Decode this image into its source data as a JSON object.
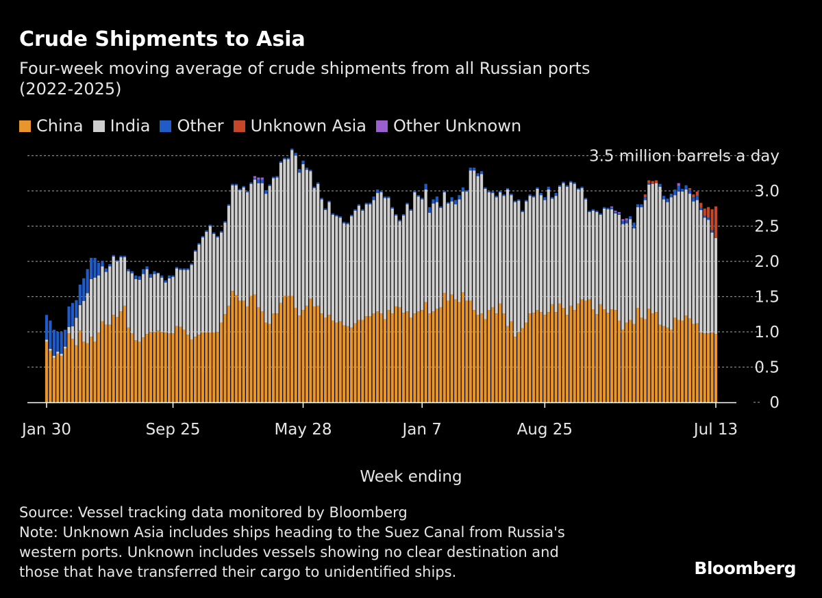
{
  "title": "Crude Shipments to Asia",
  "subtitle_lines": [
    "Four-week moving average of crude shipments from all Russian ports",
    "(2022-2025)"
  ],
  "source": "Source: Vessel tracking data monitored by Bloomberg",
  "note_lines": [
    "Note: Unknown Asia includes ships heading to the Suez Canal from Russia's",
    "western ports. Unknown includes vessels showing no clear destination and",
    "those that have transferred their cargo to unidentified ships."
  ],
  "logo": "Bloomberg",
  "chart_data": {
    "type": "bar",
    "stacked": true,
    "xlabel": "Week ending",
    "ylabel": "",
    "y_unit_label": "3.5 million barrels a day",
    "ylim": [
      0,
      3.5
    ],
    "y_ticks": [
      "0",
      "0.5",
      "1.0",
      "1.5",
      "2.0",
      "2.5",
      "3.0"
    ],
    "x_ticks": [
      "Jan 30",
      "Sep 25",
      "May 28",
      "Jan 7",
      "Aug 25",
      "Jul 13"
    ],
    "grid": true,
    "legend_position": "top-left",
    "series": [
      {
        "name": "China",
        "color": "#E8952C",
        "values": [
          0.86,
          0.73,
          0.63,
          0.69,
          0.66,
          0.76,
          0.98,
          0.9,
          0.81,
          1.02,
          0.86,
          0.84,
          0.93,
          0.86,
          0.99,
          1.15,
          1.1,
          1.1,
          1.24,
          1.21,
          1.29,
          1.37,
          1.06,
          0.98,
          0.88,
          0.86,
          0.92,
          0.97,
          1.0,
          1.0,
          1.02,
          1.0,
          0.99,
          0.98,
          0.98,
          1.08,
          1.07,
          1.03,
          0.96,
          0.89,
          0.93,
          0.96,
          0.99,
          0.99,
          0.99,
          0.99,
          1.0,
          1.13,
          1.25,
          1.37,
          1.58,
          1.52,
          1.44,
          1.44,
          1.36,
          1.51,
          1.53,
          1.35,
          1.29,
          1.13,
          1.11,
          1.26,
          1.26,
          1.41,
          1.51,
          1.51,
          1.51,
          1.34,
          1.23,
          1.31,
          1.37,
          1.47,
          1.36,
          1.37,
          1.26,
          1.2,
          1.24,
          1.16,
          1.13,
          1.15,
          1.09,
          1.08,
          1.06,
          1.12,
          1.17,
          1.17,
          1.22,
          1.22,
          1.26,
          1.29,
          1.26,
          1.18,
          1.31,
          1.26,
          1.36,
          1.35,
          1.27,
          1.29,
          1.2,
          1.26,
          1.29,
          1.31,
          1.42,
          1.26,
          1.29,
          1.33,
          1.35,
          1.55,
          1.44,
          1.53,
          1.46,
          1.42,
          1.56,
          1.44,
          1.44,
          1.31,
          1.24,
          1.26,
          1.18,
          1.31,
          1.35,
          1.26,
          1.4,
          1.26,
          1.08,
          1.15,
          0.93,
          1.0,
          1.05,
          1.13,
          1.26,
          1.27,
          1.31,
          1.28,
          1.24,
          1.28,
          1.39,
          1.28,
          1.4,
          1.34,
          1.24,
          1.37,
          1.31,
          1.4,
          1.46,
          1.44,
          1.46,
          1.32,
          1.25,
          1.39,
          1.32,
          1.27,
          1.32,
          1.31,
          1.16,
          1.03,
          1.13,
          1.17,
          1.11,
          1.34,
          1.2,
          1.18,
          1.33,
          1.26,
          1.28,
          1.1,
          1.08,
          1.06,
          1.03,
          1.2,
          1.17,
          1.16,
          1.23,
          1.19,
          1.11,
          1.12,
          0.99,
          0.98,
          0.98,
          0.99,
          0.97
        ]
      },
      {
        "name": "India",
        "color": "#CFCFCF",
        "values": [
          0.03,
          0.03,
          0.03,
          0.03,
          0.03,
          0.03,
          0.09,
          0.18,
          0.39,
          0.36,
          0.58,
          0.71,
          0.82,
          0.91,
          0.81,
          0.78,
          0.75,
          0.83,
          0.83,
          0.79,
          0.77,
          0.69,
          0.8,
          0.85,
          0.87,
          0.88,
          0.9,
          0.92,
          0.77,
          0.82,
          0.81,
          0.77,
          0.71,
          0.78,
          0.8,
          0.82,
          0.81,
          0.85,
          0.92,
          1.06,
          1.21,
          1.28,
          1.35,
          1.43,
          1.51,
          1.4,
          1.34,
          1.28,
          1.3,
          1.42,
          1.5,
          1.56,
          1.57,
          1.61,
          1.62,
          1.59,
          1.63,
          1.76,
          1.82,
          1.83,
          1.96,
          1.92,
          1.93,
          1.99,
          1.94,
          1.94,
          2.07,
          2.16,
          2.03,
          2.07,
          1.93,
          1.81,
          1.68,
          1.73,
          1.62,
          1.53,
          1.6,
          1.5,
          1.51,
          1.47,
          1.45,
          1.45,
          1.58,
          1.6,
          1.62,
          1.55,
          1.59,
          1.59,
          1.61,
          1.68,
          1.72,
          1.72,
          1.59,
          1.49,
          1.29,
          1.22,
          1.38,
          1.52,
          1.52,
          1.72,
          1.63,
          1.57,
          1.6,
          1.43,
          1.53,
          1.51,
          1.41,
          1.43,
          1.38,
          1.32,
          1.35,
          1.46,
          1.43,
          1.55,
          1.85,
          1.98,
          1.97,
          1.98,
          1.85,
          1.67,
          1.62,
          1.65,
          1.58,
          1.67,
          1.94,
          1.79,
          1.91,
          1.86,
          1.65,
          1.72,
          1.67,
          1.64,
          1.72,
          1.66,
          1.63,
          1.74,
          1.5,
          1.65,
          1.66,
          1.77,
          1.82,
          1.75,
          1.79,
          1.62,
          1.58,
          1.44,
          1.24,
          1.4,
          1.45,
          1.27,
          1.43,
          1.47,
          1.42,
          1.37,
          1.5,
          1.5,
          1.41,
          1.43,
          1.36,
          1.43,
          1.57,
          1.69,
          1.76,
          1.84,
          1.83,
          1.96,
          1.8,
          1.78,
          1.88,
          1.74,
          1.82,
          1.83,
          1.79,
          1.77,
          1.74,
          1.75,
          1.74,
          1.64,
          1.61,
          1.42,
          1.36
        ]
      },
      {
        "name": "Other",
        "color": "#1F5CC8",
        "values": [
          0.35,
          0.4,
          0.37,
          0.28,
          0.31,
          0.24,
          0.29,
          0.33,
          0.25,
          0.29,
          0.32,
          0.34,
          0.3,
          0.28,
          0.18,
          0.08,
          0.05,
          0.03,
          0.02,
          0.02,
          0.02,
          0.02,
          0.03,
          0.03,
          0.05,
          0.05,
          0.07,
          0.04,
          0.05,
          0.04,
          0.01,
          0.03,
          0.03,
          0.04,
          0.02,
          0.02,
          0.02,
          0.02,
          0.02,
          0.02,
          0.02,
          0.02,
          0.02,
          0.02,
          0.02,
          0.02,
          0.02,
          0.02,
          0.02,
          0.02,
          0.02,
          0.02,
          0.02,
          0.02,
          0.02,
          0.02,
          0.02,
          0.05,
          0.05,
          0.05,
          0.02,
          0.02,
          0.02,
          0.02,
          0.02,
          0.02,
          0.02,
          0.04,
          0.05,
          0.05,
          0.03,
          0.02,
          0.02,
          0.02,
          0.02,
          0.02,
          0.02,
          0.02,
          0.02,
          0.02,
          0.02,
          0.02,
          0.02,
          0.02,
          0.02,
          0.02,
          0.02,
          0.02,
          0.05,
          0.05,
          0.02,
          0.02,
          0.02,
          0.02,
          0.02,
          0.02,
          0.02,
          0.02,
          0.02,
          0.02,
          0.02,
          0.02,
          0.08,
          0.08,
          0.06,
          0.08,
          0.02,
          0.02,
          0.02,
          0.06,
          0.06,
          0.06,
          0.06,
          0.02,
          0.04,
          0.04,
          0.04,
          0.04,
          0.02,
          0.02,
          0.02,
          0.02,
          0.02,
          0.02,
          0.02,
          0.02,
          0.02,
          0.02,
          0.02,
          0.02,
          0.02,
          0.02,
          0.02,
          0.03,
          0.04,
          0.04,
          0.02,
          0.04,
          0.02,
          0.02,
          0.02,
          0.02,
          0.02,
          0.02,
          0.02,
          0.02,
          0.02,
          0.02,
          0.02,
          0.02,
          0.02,
          0.02,
          0.02,
          0.02,
          0.02,
          0.04,
          0.04,
          0.04,
          0.08,
          0.04,
          0.04,
          0.04,
          0.02,
          0,
          0,
          0.04,
          0.05,
          0.05,
          0.05,
          0.08,
          0.08,
          0.04,
          0.06,
          0.06,
          0.06,
          0.06,
          0.03,
          0.03,
          0.03,
          0.03
        ]
      },
      {
        "name": "Unknown Asia",
        "color": "#C4472A",
        "values": [
          0,
          0,
          0,
          0,
          0,
          0,
          0,
          0,
          0,
          0,
          0,
          0,
          0,
          0,
          0,
          0,
          0,
          0,
          0,
          0,
          0,
          0,
          0,
          0,
          0,
          0,
          0,
          0,
          0,
          0,
          0,
          0,
          0,
          0,
          0,
          0,
          0,
          0,
          0,
          0,
          0,
          0,
          0,
          0,
          0,
          0,
          0,
          0,
          0,
          0,
          0,
          0,
          0,
          0,
          0,
          0,
          0,
          0,
          0,
          0,
          0,
          0,
          0,
          0,
          0,
          0,
          0,
          0,
          0,
          0,
          0,
          0,
          0,
          0,
          0,
          0,
          0,
          0,
          0,
          0,
          0,
          0,
          0,
          0,
          0,
          0,
          0,
          0,
          0,
          0,
          0,
          0,
          0,
          0,
          0,
          0,
          0,
          0,
          0,
          0,
          0,
          0,
          0,
          0,
          0,
          0,
          0,
          0,
          0,
          0,
          0,
          0,
          0,
          0,
          0,
          0,
          0,
          0,
          0,
          0,
          0,
          0,
          0,
          0,
          0,
          0,
          0,
          0,
          0,
          0,
          0,
          0,
          0,
          0,
          0,
          0,
          0,
          0,
          0,
          0,
          0,
          0,
          0,
          0,
          0,
          0,
          0,
          0,
          0,
          0,
          0,
          0,
          0,
          0,
          0,
          0,
          0,
          0,
          0,
          0,
          0,
          0.04,
          0.04,
          0.04,
          0.04,
          0,
          0,
          0,
          0,
          0,
          0,
          0,
          0,
          0.02,
          0.04,
          0.06,
          0.07,
          0.1,
          0.15,
          0.3,
          0.45
        ]
      },
      {
        "name": "Other Unknown",
        "color": "#9B5FD0",
        "values": [
          0,
          0,
          0,
          0,
          0,
          0,
          0,
          0,
          0,
          0,
          0,
          0,
          0,
          0,
          0,
          0,
          0,
          0,
          0,
          0,
          0,
          0,
          0,
          0,
          0,
          0,
          0,
          0,
          0,
          0,
          0,
          0,
          0,
          0,
          0,
          0,
          0,
          0,
          0,
          0,
          0,
          0,
          0,
          0,
          0,
          0,
          0,
          0,
          0,
          0,
          0,
          0,
          0,
          0,
          0,
          0,
          0.03,
          0.03,
          0.03,
          0,
          0,
          0,
          0,
          0,
          0,
          0,
          0,
          0,
          0,
          0,
          0,
          0,
          0,
          0,
          0,
          0,
          0,
          0,
          0,
          0,
          0,
          0,
          0,
          0,
          0,
          0,
          0,
          0,
          0,
          0,
          0,
          0,
          0,
          0,
          0,
          0,
          0,
          0,
          0,
          0,
          0,
          0,
          0,
          0,
          0,
          0,
          0,
          0,
          0,
          0,
          0,
          0,
          0,
          0,
          0,
          0,
          0,
          0,
          0,
          0,
          0,
          0,
          0,
          0,
          0,
          0,
          0,
          0,
          0,
          0,
          0,
          0,
          0,
          0,
          0,
          0,
          0,
          0,
          0,
          0,
          0,
          0,
          0,
          0,
          0,
          0,
          0,
          0,
          0,
          0,
          0,
          0,
          0.02,
          0.02,
          0.02,
          0.03,
          0.03,
          0,
          0,
          0,
          0,
          0,
          0,
          0,
          0,
          0,
          0,
          0,
          0,
          0,
          0.04
        ]
      }
    ]
  }
}
